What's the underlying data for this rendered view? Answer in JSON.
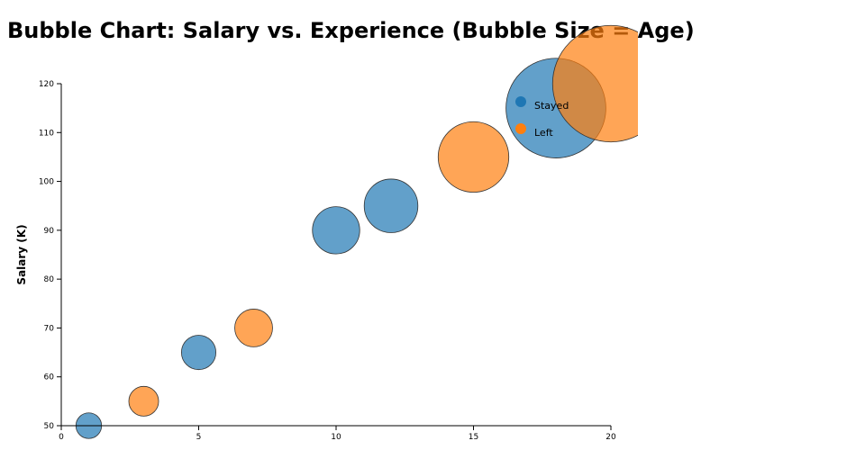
{
  "chart_data": {
    "type": "scatter",
    "title": "Bubble Chart: Salary vs. Experience (Bubble Size = Age)",
    "xlabel": "",
    "ylabel": "Salary (K)",
    "xlim": [
      0,
      20
    ],
    "ylim": [
      50,
      120
    ],
    "xticks": [
      0,
      5,
      10,
      15,
      20
    ],
    "yticks": [
      50,
      60,
      70,
      80,
      90,
      100,
      110,
      120
    ],
    "grid": false,
    "legend_position": "top-right",
    "size_encoding": "Age",
    "series": [
      {
        "name": "Stayed",
        "color": "#1f77b4",
        "points": [
          {
            "x": 1,
            "y": 50,
            "age": 22
          },
          {
            "x": 5,
            "y": 65,
            "age": 28
          },
          {
            "x": 10,
            "y": 90,
            "age": 35
          },
          {
            "x": 12,
            "y": 95,
            "age": 38
          },
          {
            "x": 18,
            "y": 115,
            "age": 55
          }
        ]
      },
      {
        "name": "Left",
        "color": "#ff7f0e",
        "points": [
          {
            "x": 3,
            "y": 55,
            "age": 25
          },
          {
            "x": 7,
            "y": 70,
            "age": 30
          },
          {
            "x": 15,
            "y": 105,
            "age": 45
          },
          {
            "x": 20,
            "y": 120,
            "age": 60
          }
        ]
      }
    ]
  }
}
